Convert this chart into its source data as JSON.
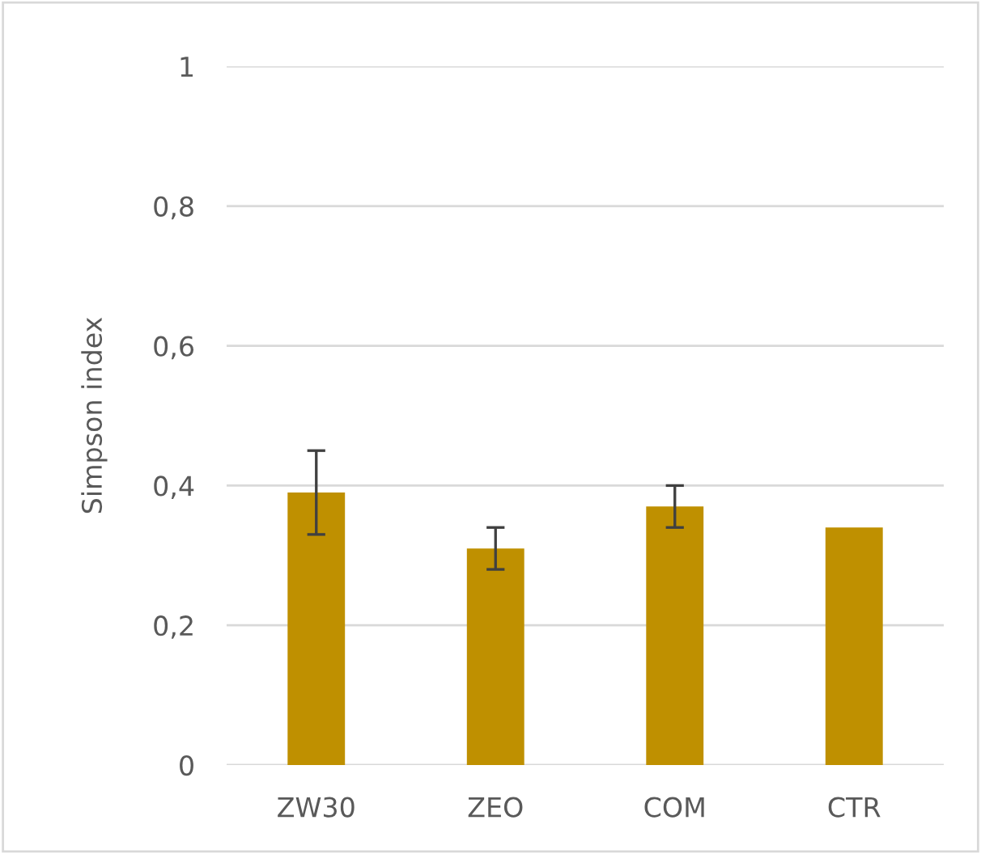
{
  "chart_data": {
    "type": "bar",
    "ylabel": "Simpson index",
    "categories": [
      "ZW30",
      "ZEO",
      "COM",
      "CTR"
    ],
    "values": [
      0.39,
      0.31,
      0.37,
      0.34
    ],
    "errors": [
      0.06,
      0.03,
      0.03,
      null
    ],
    "color": "#bf9000",
    "ylim": [
      0,
      1
    ],
    "yticks": [
      0,
      {
        "value": 0.2,
        "label": "0,2"
      },
      {
        "value": 0.4,
        "label": "0,4"
      },
      {
        "value": 0.6,
        "label": "0,6"
      },
      {
        "value": 0.8,
        "label": "0,8"
      },
      1
    ],
    "grid": "y"
  }
}
